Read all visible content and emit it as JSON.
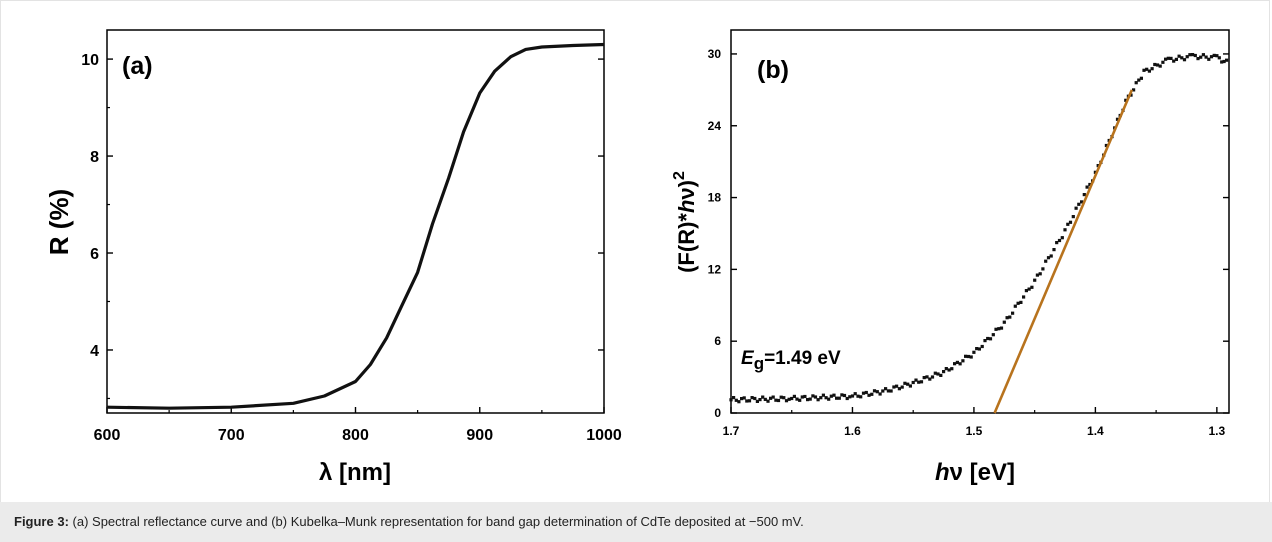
{
  "caption": {
    "label": "Figure 3:",
    "text": " (a) Spectral reflectance curve and (b) Kubelka–Munk representation for band gap determination of CdTe deposited at −500 mV."
  },
  "colors": {
    "data": "#111111",
    "fit_line": "#b8731d",
    "caption_bg": "#ebebeb"
  },
  "chart_data": [
    {
      "type": "line",
      "panel_label": "(a)",
      "xlabel": "λ [nm]",
      "ylabel": "R (%)",
      "xlim": [
        600,
        1000
      ],
      "ylim": [
        2.7,
        10.6
      ],
      "xticks": [
        600,
        700,
        800,
        900,
        1000
      ],
      "yticks": [
        4,
        6,
        8,
        10
      ],
      "grid": false,
      "series": [
        {
          "x": [
            600,
            650,
            700,
            750,
            775,
            800,
            812,
            825,
            837,
            850,
            862,
            875,
            887,
            900,
            912,
            925,
            937,
            950,
            975,
            1000
          ],
          "y": [
            2.82,
            2.8,
            2.82,
            2.9,
            3.05,
            3.35,
            3.7,
            4.25,
            4.9,
            5.6,
            6.6,
            7.55,
            8.5,
            9.3,
            9.75,
            10.05,
            10.2,
            10.25,
            10.28,
            10.3
          ]
        }
      ]
    },
    {
      "type": "scatter",
      "panel_label": "(b)",
      "xlabel": "hν [eV]",
      "ylabel": "(F(R)*hν)²",
      "xlim": [
        1.7,
        1.29
      ],
      "x_reversed": true,
      "ylim": [
        0,
        32
      ],
      "xticks": [
        1.7,
        1.6,
        1.5,
        1.4,
        1.3
      ],
      "yticks": [
        0,
        6,
        12,
        18,
        24,
        30
      ],
      "grid": false,
      "annotation": "Eg=1.49 eV",
      "series": [
        {
          "x": [
            1.7,
            1.65,
            1.6,
            1.575,
            1.55,
            1.525,
            1.5,
            1.475,
            1.45,
            1.425,
            1.4,
            1.375,
            1.36,
            1.34,
            1.32,
            1.3,
            1.29
          ],
          "y": [
            1.1,
            1.2,
            1.4,
            1.8,
            2.5,
            3.4,
            5.0,
            7.5,
            11.0,
            15.2,
            20.0,
            26.0,
            28.5,
            29.5,
            29.8,
            29.7,
            29.2
          ]
        }
      ],
      "fit_line": {
        "x": [
          1.483,
          1.37
        ],
        "y": [
          0,
          27.0
        ]
      }
    }
  ]
}
